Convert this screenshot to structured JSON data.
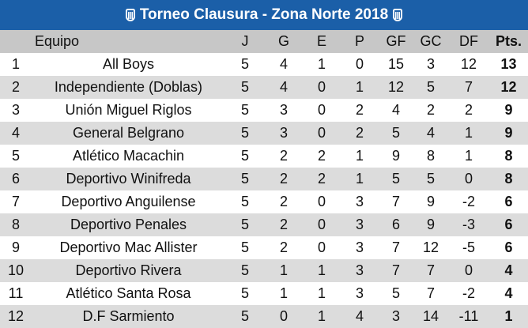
{
  "title": "Torneo Clausura - Zona Norte 2018",
  "header": {
    "pos": "",
    "team": "Equipo",
    "j": "J",
    "g": "G",
    "e": "E",
    "p": "P",
    "gf": "GF",
    "gc": "GC",
    "df": "DF",
    "pts": "Pts."
  },
  "rows": [
    {
      "pos": "1",
      "team": "All Boys",
      "j": "5",
      "g": "4",
      "e": "1",
      "p": "0",
      "gf": "15",
      "gc": "3",
      "df": "12",
      "pts": "13"
    },
    {
      "pos": "2",
      "team": "Independiente (Doblas)",
      "j": "5",
      "g": "4",
      "e": "0",
      "p": "1",
      "gf": "12",
      "gc": "5",
      "df": "7",
      "pts": "12"
    },
    {
      "pos": "3",
      "team": "Unión Miguel Riglos",
      "j": "5",
      "g": "3",
      "e": "0",
      "p": "2",
      "gf": "4",
      "gc": "2",
      "df": "2",
      "pts": "9"
    },
    {
      "pos": "4",
      "team": "General Belgrano",
      "j": "5",
      "g": "3",
      "e": "0",
      "p": "2",
      "gf": "5",
      "gc": "4",
      "df": "1",
      "pts": "9"
    },
    {
      "pos": "5",
      "team": "Atlético Macachin",
      "j": "5",
      "g": "2",
      "e": "2",
      "p": "1",
      "gf": "9",
      "gc": "8",
      "df": "1",
      "pts": "8"
    },
    {
      "pos": "6",
      "team": "Deportivo Winifreda",
      "j": "5",
      "g": "2",
      "e": "2",
      "p": "1",
      "gf": "5",
      "gc": "5",
      "df": "0",
      "pts": "8"
    },
    {
      "pos": "7",
      "team": "Deportivo Anguilense",
      "j": "5",
      "g": "2",
      "e": "0",
      "p": "3",
      "gf": "7",
      "gc": "9",
      "df": "-2",
      "pts": "6"
    },
    {
      "pos": "8",
      "team": "Deportivo Penales",
      "j": "5",
      "g": "2",
      "e": "0",
      "p": "3",
      "gf": "6",
      "gc": "9",
      "df": "-3",
      "pts": "6"
    },
    {
      "pos": "9",
      "team": "Deportivo Mac Allister",
      "j": "5",
      "g": "2",
      "e": "0",
      "p": "3",
      "gf": "7",
      "gc": "12",
      "df": "-5",
      "pts": "6"
    },
    {
      "pos": "10",
      "team": "Deportivo Rivera",
      "j": "5",
      "g": "1",
      "e": "1",
      "p": "3",
      "gf": "7",
      "gc": "7",
      "df": "0",
      "pts": "4"
    },
    {
      "pos": "11",
      "team": "Atlético Santa Rosa",
      "j": "5",
      "g": "1",
      "e": "1",
      "p": "3",
      "gf": "5",
      "gc": "7",
      "df": "-2",
      "pts": "4"
    },
    {
      "pos": "12",
      "team": "D.F Sarmiento",
      "j": "5",
      "g": "0",
      "e": "1",
      "p": "4",
      "gf": "3",
      "gc": "14",
      "df": "-11",
      "pts": "1"
    }
  ],
  "colors": {
    "title_bar": "#1b5fa8",
    "header_row": "#c7c7c7",
    "row_alt": "#dcdcdc",
    "row": "#ffffff"
  },
  "icons": {
    "left": "league-crest-icon",
    "right": "league-crest-icon"
  }
}
